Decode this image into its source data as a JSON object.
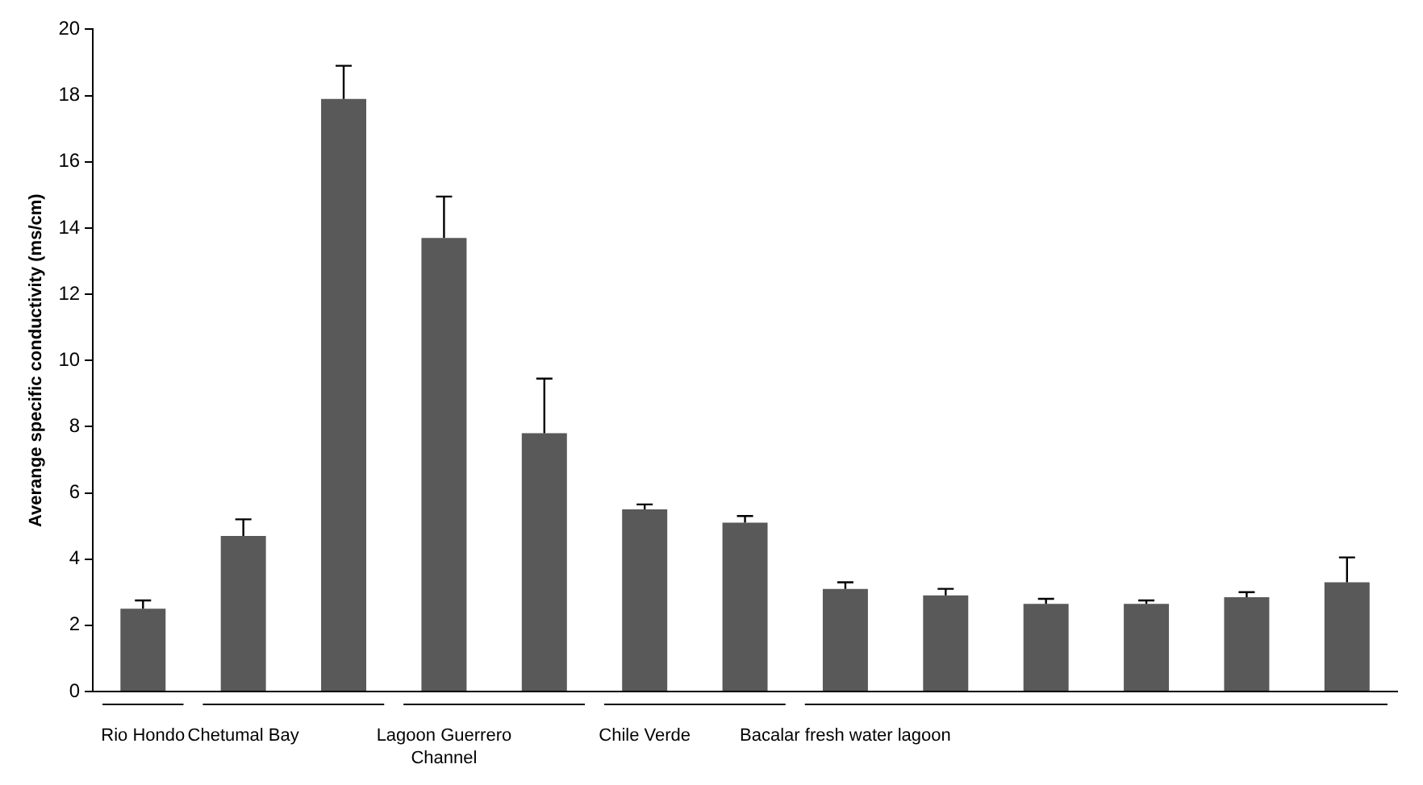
{
  "chart_data": {
    "type": "bar",
    "ylabel": "Averange specific conductivity (ms/cm)",
    "categories": [
      "Rio Hondo",
      "Chetumal Bay",
      null,
      "Lagoon Guerrero Channel",
      null,
      "Chile Verde",
      null,
      "Bacalar fresh water lagoon",
      null,
      null,
      null,
      null,
      null
    ],
    "values": [
      2.5,
      4.7,
      17.9,
      13.7,
      7.8,
      5.5,
      5.1,
      3.1,
      2.9,
      2.65,
      2.65,
      2.85,
      3.3
    ],
    "errors": [
      [
        2.5,
        2.75
      ],
      [
        4.7,
        5.2
      ],
      [
        17.9,
        18.9
      ],
      [
        13.7,
        14.95
      ],
      [
        7.8,
        9.45
      ],
      [
        5.5,
        5.65
      ],
      [
        5.1,
        5.3
      ],
      [
        3.1,
        3.3
      ],
      [
        2.9,
        3.1
      ],
      [
        2.65,
        2.8
      ],
      [
        2.65,
        2.75
      ],
      [
        2.85,
        3.0
      ],
      [
        3.3,
        4.05
      ]
    ],
    "color": "#595959",
    "ylim": [
      0,
      20
    ],
    "yticks": [
      0,
      2,
      4,
      6,
      8,
      10,
      12,
      14,
      16,
      18,
      20
    ],
    "grid": false,
    "legend": false
  }
}
